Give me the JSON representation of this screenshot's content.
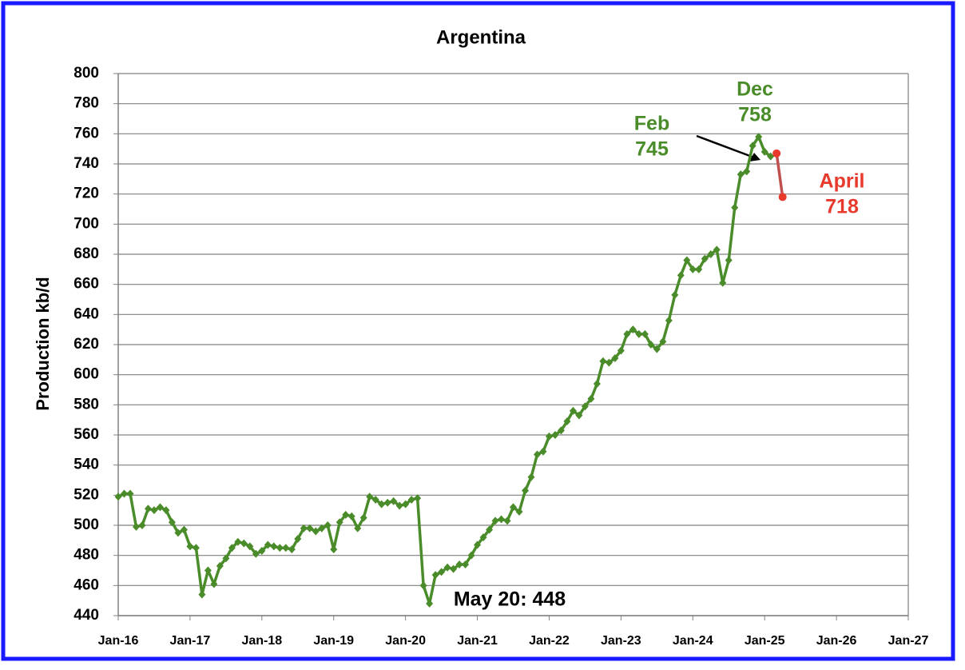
{
  "chart_data": {
    "type": "line",
    "title": "Argentina",
    "y_label": "Production kb/d",
    "xlim": [
      "Jan-16",
      "Jan-27"
    ],
    "xticks": [
      "Jan-16",
      "Jan-17",
      "Jan-18",
      "Jan-19",
      "Jan-20",
      "Jan-21",
      "Jan-22",
      "Jan-23",
      "Jan-24",
      "Jan-25",
      "Jan-26",
      "Jan-27"
    ],
    "ylim": [
      440,
      800
    ],
    "yticks": [
      440,
      460,
      480,
      500,
      520,
      540,
      560,
      580,
      600,
      620,
      640,
      660,
      680,
      700,
      720,
      740,
      760,
      780,
      800
    ],
    "grid": true,
    "series": [
      {
        "color": "#4a8c2a",
        "marker": "diamond",
        "x": [
          "Jan-16",
          "Feb-16",
          "Mar-16",
          "Apr-16",
          "May-16",
          "Jun-16",
          "Jul-16",
          "Aug-16",
          "Sep-16",
          "Oct-16",
          "Nov-16",
          "Dec-16",
          "Jan-17",
          "Feb-17",
          "Mar-17",
          "Apr-17",
          "May-17",
          "Jun-17",
          "Jul-17",
          "Aug-17",
          "Sep-17",
          "Oct-17",
          "Nov-17",
          "Dec-17",
          "Jan-18",
          "Feb-18",
          "Mar-18",
          "Apr-18",
          "May-18",
          "Jun-18",
          "Jul-18",
          "Aug-18",
          "Sep-18",
          "Oct-18",
          "Nov-18",
          "Dec-18",
          "Jan-19",
          "Feb-19",
          "Mar-19",
          "Apr-19",
          "May-19",
          "Jun-19",
          "Jul-19",
          "Aug-19",
          "Sep-19",
          "Oct-19",
          "Nov-19",
          "Dec-19",
          "Jan-20",
          "Feb-20",
          "Mar-20",
          "Apr-20",
          "May-20",
          "Jun-20",
          "Jul-20",
          "Aug-20",
          "Sep-20",
          "Oct-20",
          "Nov-20",
          "Dec-20",
          "Jan-21",
          "Feb-21",
          "Mar-21",
          "Apr-21",
          "May-21",
          "Jun-21",
          "Jul-21",
          "Aug-21",
          "Sep-21",
          "Oct-21",
          "Nov-21",
          "Dec-21",
          "Jan-22",
          "Feb-22",
          "Mar-22",
          "Apr-22",
          "May-22",
          "Jun-22",
          "Jul-22",
          "Aug-22",
          "Sep-22",
          "Oct-22",
          "Nov-22",
          "Dec-22",
          "Jan-23",
          "Feb-23",
          "Mar-23",
          "Apr-23",
          "May-23",
          "Jun-23",
          "Jul-23",
          "Aug-23",
          "Sep-23",
          "Oct-23",
          "Nov-23",
          "Dec-23",
          "Jan-24",
          "Feb-24",
          "Mar-24",
          "Apr-24",
          "May-24",
          "Jun-24",
          "Jul-24",
          "Aug-24",
          "Sep-24",
          "Oct-24",
          "Nov-24",
          "Dec-24",
          "Jan-25",
          "Feb-25"
        ],
        "values": [
          519,
          521,
          521,
          499,
          500,
          511,
          510,
          512,
          510,
          502,
          495,
          497,
          486,
          485,
          454,
          470,
          461,
          473,
          478,
          485,
          489,
          488,
          486,
          481,
          483,
          487,
          486,
          485,
          485,
          484,
          491,
          498,
          498,
          496,
          498,
          500,
          484,
          502,
          507,
          506,
          498,
          505,
          519,
          517,
          514,
          515,
          516,
          513,
          514,
          517,
          518,
          460,
          448,
          467,
          469,
          472,
          471,
          474,
          474,
          480,
          487,
          492,
          497,
          503,
          504,
          503,
          512,
          509,
          523,
          532,
          547,
          549,
          559,
          560,
          563,
          569,
          576,
          573,
          579,
          584,
          594,
          609,
          608,
          611,
          616,
          627,
          630,
          627,
          627,
          620,
          617,
          622,
          636,
          653,
          666,
          676,
          670,
          670,
          677,
          680,
          683,
          661,
          676,
          711,
          733,
          735,
          752,
          758,
          748,
          745
        ]
      },
      {
        "color": "#e8392d",
        "line_color": "#c0504d",
        "marker": "circle",
        "x": [
          "Mar-25",
          "Apr-25"
        ],
        "values": [
          747,
          718
        ]
      }
    ],
    "annotations": [
      {
        "text": [
          "Dec",
          "758"
        ],
        "color": "#4a8c2a"
      },
      {
        "text": [
          "Feb",
          "745"
        ],
        "color": "#4a8c2a"
      },
      {
        "text": [
          "April",
          "718"
        ],
        "color": "#e8392d"
      },
      {
        "text": [
          "May 20: 448"
        ],
        "color": "#000000"
      }
    ]
  }
}
